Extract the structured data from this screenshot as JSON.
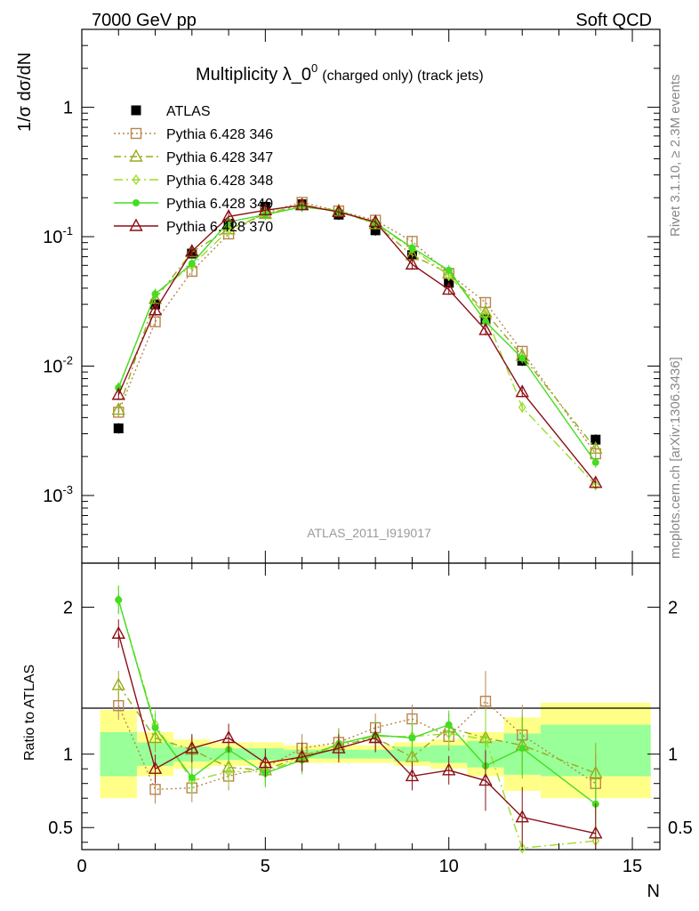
{
  "header": {
    "left": "7000 GeV pp",
    "right": "Soft QCD",
    "plot_title_main": "Multiplicity λ_0",
    "plot_title_sup": "0",
    "plot_title_small": "(charged only) (track jets)",
    "watermark": "ATLAS_2011_I919017",
    "side_rivet": "Rivet 3.1.10, ≥ 2.3M events",
    "side_mcplots": "mcplots.cern.ch [arXiv:1306.3436]"
  },
  "colors": {
    "atlas": "#000000",
    "p346": "#b8864b",
    "p347": "#9aaa1a",
    "p348": "#9cdc2c",
    "p349": "#44dd22",
    "p370": "#8b0f16",
    "band_yellow": "#ffff88",
    "band_green": "#99ff99"
  },
  "chart_data": [
    {
      "type": "scatter",
      "panel": "main",
      "ylabel": "1/σ dσ/dN",
      "yscale": "log",
      "xlim": [
        0,
        15.75
      ],
      "ylim": [
        0.0003,
        4
      ],
      "ytick_labels": [
        "1",
        "10^-1",
        "10^-2",
        "10^-3"
      ],
      "legend_position": "top-left",
      "series": [
        {
          "name": "ATLAS",
          "style": "atlas",
          "x": [
            1,
            2,
            3,
            4,
            5,
            6,
            7,
            8,
            9,
            10,
            11,
            12,
            14
          ],
          "y": [
            0.0033,
            0.03,
            0.074,
            0.126,
            0.17,
            0.178,
            0.148,
            0.112,
            0.072,
            0.044,
            0.023,
            0.011,
            0.0027
          ]
        },
        {
          "name": "Pythia 6.428 346",
          "style": "p346",
          "x": [
            1,
            2,
            3,
            4,
            5,
            6,
            7,
            8,
            9,
            10,
            11,
            12,
            14
          ],
          "y": [
            0.0044,
            0.022,
            0.054,
            0.105,
            0.154,
            0.184,
            0.158,
            0.134,
            0.092,
            0.052,
            0.031,
            0.013,
            0.0021
          ]
        },
        {
          "name": "Pythia 6.428 347",
          "style": "p347",
          "x": [
            1,
            2,
            3,
            4,
            5,
            6,
            7,
            8,
            9,
            10,
            11,
            12,
            14
          ],
          "y": [
            0.0046,
            0.033,
            0.076,
            0.114,
            0.15,
            0.176,
            0.158,
            0.125,
            0.072,
            0.052,
            0.026,
            0.012,
            0.0023
          ]
        },
        {
          "name": "Pythia 6.428 348",
          "style": "p348",
          "x": [
            1,
            2,
            3,
            4,
            5,
            6,
            7,
            8,
            9,
            10,
            11,
            12,
            14
          ],
          "y": [
            0.0068,
            0.036,
            0.06,
            0.112,
            0.15,
            0.172,
            0.158,
            0.126,
            0.081,
            0.05,
            0.025,
            0.0048,
            0.0012
          ]
        },
        {
          "name": "Pythia 6.428 349",
          "style": "p349",
          "x": [
            1,
            2,
            3,
            4,
            5,
            6,
            7,
            8,
            9,
            10,
            11,
            12,
            14
          ],
          "y": [
            0.0068,
            0.036,
            0.062,
            0.13,
            0.148,
            0.17,
            0.158,
            0.128,
            0.082,
            0.055,
            0.022,
            0.0115,
            0.0018
          ]
        },
        {
          "name": "Pythia 6.428 370",
          "style": "p370",
          "x": [
            1,
            2,
            3,
            4,
            5,
            6,
            7,
            8,
            9,
            10,
            11,
            12,
            14
          ],
          "y": [
            0.006,
            0.027,
            0.077,
            0.143,
            0.16,
            0.175,
            0.155,
            0.13,
            0.061,
            0.039,
            0.019,
            0.0063,
            0.00125
          ]
        }
      ]
    },
    {
      "type": "scatter",
      "panel": "ratio",
      "ylabel": "Ratio to ATLAS",
      "xlabel": "N",
      "xlim": [
        0,
        15.75
      ],
      "ylim": [
        0.35,
        2.3
      ],
      "xticks": [
        0,
        5,
        10,
        15
      ],
      "yticks": [
        0.5,
        1,
        2
      ],
      "bands": [
        {
          "x0": 0.5,
          "x1": 1.5,
          "y_lo": 0.7,
          "y_hi": 1.3,
          "g_lo": 0.85,
          "g_hi": 1.15
        },
        {
          "x0": 1.5,
          "x1": 2.5,
          "y_lo": 0.85,
          "y_hi": 1.15,
          "g_lo": 0.92,
          "g_hi": 1.08
        },
        {
          "x0": 2.5,
          "x1": 3.5,
          "y_lo": 0.9,
          "y_hi": 1.1,
          "g_lo": 0.95,
          "g_hi": 1.05
        },
        {
          "x0": 3.5,
          "x1": 4.5,
          "y_lo": 0.92,
          "y_hi": 1.08,
          "g_lo": 0.96,
          "g_hi": 1.04
        },
        {
          "x0": 4.5,
          "x1": 5.5,
          "y_lo": 0.92,
          "y_hi": 1.08,
          "g_lo": 0.96,
          "g_hi": 1.04
        },
        {
          "x0": 5.5,
          "x1": 6.5,
          "y_lo": 0.94,
          "y_hi": 1.06,
          "g_lo": 0.97,
          "g_hi": 1.03
        },
        {
          "x0": 6.5,
          "x1": 7.5,
          "y_lo": 0.94,
          "y_hi": 1.06,
          "g_lo": 0.97,
          "g_hi": 1.03
        },
        {
          "x0": 7.5,
          "x1": 8.5,
          "y_lo": 0.94,
          "y_hi": 1.06,
          "g_lo": 0.97,
          "g_hi": 1.03
        },
        {
          "x0": 8.5,
          "x1": 9.5,
          "y_lo": 0.92,
          "y_hi": 1.08,
          "g_lo": 0.95,
          "g_hi": 1.05
        },
        {
          "x0": 9.5,
          "x1": 10.5,
          "y_lo": 0.9,
          "y_hi": 1.1,
          "g_lo": 0.94,
          "g_hi": 1.06
        },
        {
          "x0": 10.5,
          "x1": 11.5,
          "y_lo": 0.85,
          "y_hi": 1.15,
          "g_lo": 0.91,
          "g_hi": 1.09
        },
        {
          "x0": 11.5,
          "x1": 12.5,
          "y_lo": 0.75,
          "y_hi": 1.25,
          "g_lo": 0.86,
          "g_hi": 1.14
        },
        {
          "x0": 12.5,
          "x1": 15.5,
          "y_lo": 0.7,
          "y_hi": 1.35,
          "g_lo": 0.85,
          "g_hi": 1.2
        }
      ],
      "series": [
        {
          "name": "Pythia 6.428 346",
          "style": "p346",
          "x": [
            1,
            2,
            3,
            4,
            5,
            6,
            7,
            8,
            9,
            10,
            11,
            12,
            14
          ],
          "y": [
            1.33,
            0.76,
            0.77,
            0.85,
            0.91,
            1.04,
            1.08,
            1.18,
            1.24,
            1.12,
            1.36,
            1.13,
            0.8
          ]
        },
        {
          "name": "Pythia 6.428 347",
          "style": "p347",
          "x": [
            1,
            2,
            3,
            4,
            5,
            6,
            7,
            8,
            9,
            10,
            11,
            12,
            14
          ],
          "y": [
            1.47,
            1.11,
            1.03,
            0.91,
            0.89,
            0.99,
            1.06,
            1.11,
            0.98,
            1.18,
            1.11,
            1.06,
            0.87
          ]
        },
        {
          "name": "Pythia 6.428 348",
          "style": "p348",
          "x": [
            1,
            2,
            3,
            4,
            5,
            6,
            7,
            8,
            9,
            10,
            11,
            12,
            14
          ],
          "y": [
            2.05,
            1.2,
            0.82,
            0.88,
            0.88,
            0.97,
            1.07,
            1.12,
            1.12,
            1.14,
            1.1,
            0.36,
            0.41
          ]
        },
        {
          "name": "Pythia 6.428 349",
          "style": "p349",
          "x": [
            1,
            2,
            3,
            4,
            5,
            6,
            7,
            8,
            9,
            10,
            11,
            12,
            14
          ],
          "y": [
            2.05,
            1.18,
            0.84,
            1.03,
            0.87,
            0.96,
            1.07,
            1.13,
            1.11,
            1.2,
            0.92,
            1.04,
            0.66
          ]
        },
        {
          "name": "Pythia 6.428 370",
          "style": "p370",
          "x": [
            1,
            2,
            3,
            4,
            5,
            6,
            7,
            8,
            9,
            10,
            11,
            12,
            14
          ],
          "y": [
            1.82,
            0.9,
            1.04,
            1.11,
            0.94,
            0.98,
            1.04,
            1.11,
            0.85,
            0.89,
            0.82,
            0.57,
            0.46
          ]
        }
      ]
    }
  ]
}
